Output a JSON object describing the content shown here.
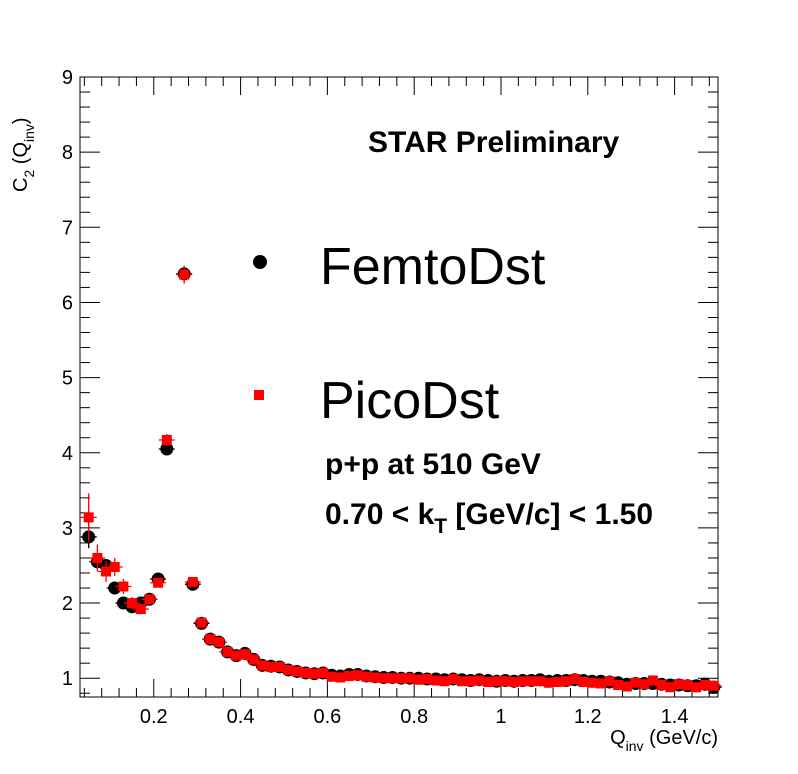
{
  "chart_data": {
    "type": "scatter",
    "title": "",
    "xlabel": {
      "main": "Q",
      "sub": "inv",
      "rest": " (GeV/c)"
    },
    "ylabel": {
      "pre": "C",
      "sub1": "2",
      "mid": " (Q",
      "sub2": "inv",
      "post": ")"
    },
    "xlim": [
      0.03,
      1.5
    ],
    "ylim": [
      0.75,
      9
    ],
    "x_ticks": [
      0.2,
      0.4,
      0.6,
      0.8,
      1,
      1.2,
      1.4
    ],
    "x_tick_labels": [
      "0.2",
      "0.4",
      "0.6",
      "0.8",
      "1",
      "1.2",
      "1.4"
    ],
    "y_ticks": [
      1,
      2,
      3,
      4,
      5,
      6,
      7,
      8,
      9
    ],
    "y_tick_labels": [
      "1",
      "2",
      "3",
      "4",
      "5",
      "6",
      "7",
      "8",
      "9"
    ],
    "grid": false,
    "annotations": {
      "experiment": "STAR Preliminary",
      "system": "p+p at 510 GeV",
      "kt_prefix": "0.70 < k",
      "kt_sub": "T",
      "kt_suffix": " [GeV/c] < 1.50"
    },
    "legend_position": "upper-right",
    "series": [
      {
        "name": "FemtoDst",
        "marker": "circle",
        "color": "#000000",
        "x": [
          0.05,
          0.07,
          0.09,
          0.11,
          0.13,
          0.15,
          0.17,
          0.19,
          0.21,
          0.23,
          0.27,
          0.29,
          0.31,
          0.33,
          0.35,
          0.37,
          0.39,
          0.41,
          0.43,
          0.45,
          0.47,
          0.49,
          0.51,
          0.53,
          0.55,
          0.57,
          0.59,
          0.61,
          0.63,
          0.65,
          0.67,
          0.69,
          0.71,
          0.73,
          0.75,
          0.77,
          0.79,
          0.81,
          0.83,
          0.85,
          0.87,
          0.89,
          0.91,
          0.93,
          0.95,
          0.97,
          0.99,
          1.01,
          1.03,
          1.05,
          1.07,
          1.09,
          1.11,
          1.13,
          1.15,
          1.17,
          1.19,
          1.21,
          1.23,
          1.25,
          1.27,
          1.29,
          1.31,
          1.33,
          1.35,
          1.37,
          1.39,
          1.41,
          1.43,
          1.45,
          1.47,
          1.49
        ],
        "y": [
          2.88,
          2.55,
          2.5,
          2.2,
          2.0,
          1.95,
          2.0,
          2.05,
          2.32,
          4.05,
          6.38,
          2.25,
          1.73,
          1.52,
          1.48,
          1.35,
          1.3,
          1.33,
          1.25,
          1.17,
          1.16,
          1.15,
          1.11,
          1.09,
          1.07,
          1.06,
          1.07,
          1.04,
          1.03,
          1.05,
          1.05,
          1.03,
          1.02,
          1.01,
          1.01,
          1.0,
          1.0,
          1.0,
          0.99,
          0.99,
          0.98,
          0.99,
          0.98,
          0.97,
          0.98,
          0.97,
          0.96,
          0.97,
          0.96,
          0.97,
          0.97,
          0.98,
          0.96,
          0.97,
          0.97,
          0.98,
          0.97,
          0.96,
          0.96,
          0.95,
          0.94,
          0.92,
          0.93,
          0.93,
          0.93,
          0.92,
          0.91,
          0.91,
          0.9,
          0.9,
          0.92,
          0.88
        ],
        "err": [
          0.15,
          0.1,
          0.08,
          0.07,
          0.06,
          0.05,
          0.05,
          0.05,
          0.05,
          0.06,
          0.09,
          0.04,
          0.03,
          0.03,
          0.02,
          0.02,
          0.02,
          0.02,
          0.02,
          0.02,
          0.02,
          0.02,
          0.01,
          0.01,
          0.01,
          0.01,
          0.01,
          0.01,
          0.01,
          0.01,
          0.01,
          0.01,
          0.01,
          0.01,
          0.01,
          0.01,
          0.01,
          0.01,
          0.01,
          0.01,
          0.01,
          0.01,
          0.01,
          0.01,
          0.01,
          0.01,
          0.01,
          0.01,
          0.01,
          0.01,
          0.01,
          0.01,
          0.01,
          0.01,
          0.01,
          0.01,
          0.01,
          0.01,
          0.01,
          0.01,
          0.01,
          0.01,
          0.01,
          0.01,
          0.01,
          0.01,
          0.01,
          0.01,
          0.01,
          0.01,
          0.01,
          0.01
        ]
      },
      {
        "name": "PicoDst",
        "marker": "square",
        "color": "#ff0000",
        "x": [
          0.05,
          0.07,
          0.09,
          0.11,
          0.13,
          0.15,
          0.17,
          0.19,
          0.21,
          0.23,
          0.27,
          0.29,
          0.31,
          0.33,
          0.35,
          0.37,
          0.39,
          0.41,
          0.43,
          0.45,
          0.47,
          0.49,
          0.51,
          0.53,
          0.55,
          0.57,
          0.59,
          0.61,
          0.63,
          0.65,
          0.67,
          0.69,
          0.71,
          0.73,
          0.75,
          0.77,
          0.79,
          0.81,
          0.83,
          0.85,
          0.87,
          0.89,
          0.91,
          0.93,
          0.95,
          0.97,
          0.99,
          1.01,
          1.03,
          1.05,
          1.07,
          1.09,
          1.11,
          1.13,
          1.15,
          1.17,
          1.19,
          1.21,
          1.23,
          1.25,
          1.27,
          1.29,
          1.31,
          1.33,
          1.35,
          1.37,
          1.39,
          1.41,
          1.43,
          1.45,
          1.47,
          1.49
        ],
        "y": [
          3.14,
          2.6,
          2.42,
          2.48,
          2.22,
          2.0,
          1.92,
          2.05,
          2.27,
          4.17,
          6.37,
          2.28,
          1.74,
          1.52,
          1.48,
          1.35,
          1.3,
          1.32,
          1.25,
          1.17,
          1.15,
          1.15,
          1.11,
          1.09,
          1.07,
          1.06,
          1.07,
          1.02,
          1.01,
          1.03,
          1.04,
          1.02,
          1.01,
          1.0,
          1.0,
          1.0,
          1.0,
          0.98,
          0.99,
          0.97,
          0.96,
          0.99,
          0.96,
          0.96,
          0.97,
          0.95,
          0.96,
          0.96,
          0.95,
          0.96,
          0.96,
          0.96,
          0.94,
          0.95,
          0.96,
          0.99,
          0.95,
          0.94,
          0.93,
          0.96,
          0.91,
          0.89,
          0.94,
          0.92,
          0.97,
          0.91,
          0.88,
          0.92,
          0.91,
          0.88,
          0.91,
          0.9
        ],
        "err": [
          0.32,
          0.18,
          0.14,
          0.12,
          0.1,
          0.08,
          0.07,
          0.06,
          0.06,
          0.08,
          0.12,
          0.05,
          0.04,
          0.03,
          0.03,
          0.03,
          0.02,
          0.02,
          0.02,
          0.02,
          0.02,
          0.02,
          0.02,
          0.02,
          0.02,
          0.02,
          0.02,
          0.02,
          0.02,
          0.02,
          0.02,
          0.02,
          0.02,
          0.02,
          0.02,
          0.02,
          0.02,
          0.02,
          0.02,
          0.02,
          0.02,
          0.02,
          0.02,
          0.02,
          0.02,
          0.02,
          0.02,
          0.02,
          0.02,
          0.02,
          0.02,
          0.02,
          0.02,
          0.02,
          0.02,
          0.02,
          0.02,
          0.02,
          0.02,
          0.02,
          0.02,
          0.02,
          0.02,
          0.02,
          0.02,
          0.02,
          0.02,
          0.02,
          0.02,
          0.02,
          0.02,
          0.02
        ]
      }
    ]
  }
}
